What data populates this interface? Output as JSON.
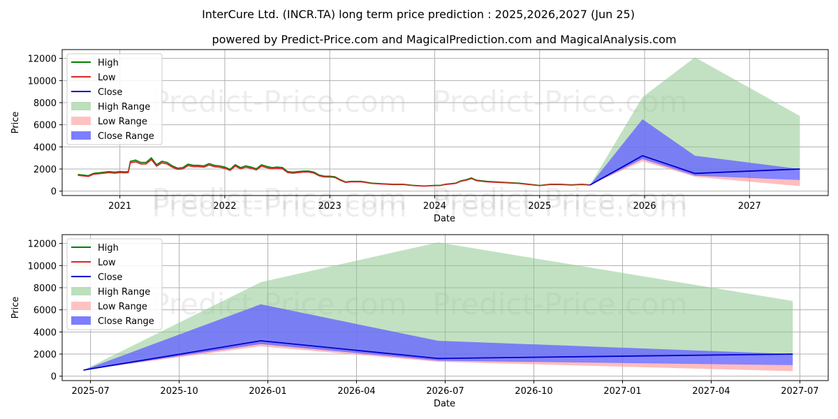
{
  "title": "InterCure Ltd. (INCR.TA) long term price prediction : 2025,2026,2027 (Jun 25)",
  "subtitle": "powered by Predict-Price.com and MagicalPrediction.com and MagicalAnalysis.com",
  "watermark": "Predict-Price.com",
  "colors": {
    "high": "#008000",
    "low": "#d62728",
    "close": "#0000cc",
    "high_range": "#8fc98f",
    "low_range": "#ff9a9a",
    "close_range": "#6666ff",
    "grid": "#b0b0b0"
  },
  "legend_labels": [
    "High",
    "Low",
    "Close",
    "High Range",
    "Low Range",
    "Close Range"
  ],
  "chart_data": [
    {
      "id": "top",
      "type": "line",
      "xlabel": "Date",
      "ylabel": "Price",
      "xlim": [
        2020.45,
        2027.75
      ],
      "ylim": [
        -400,
        12800
      ],
      "x_ticks": [
        2021,
        2022,
        2023,
        2024,
        2025,
        2026,
        2027
      ],
      "x_tick_labels": [
        "2021",
        "2022",
        "2023",
        "2024",
        "2025",
        "2026",
        "2027"
      ],
      "y_ticks": [
        0,
        2000,
        4000,
        6000,
        8000,
        10000,
        12000
      ],
      "y_tick_labels": [
        "0",
        "2000",
        "4000",
        "6000",
        "8000",
        "10000",
        "12000"
      ],
      "legend_position": "upper left",
      "history": {
        "x": [
          2020.6,
          2020.65,
          2020.7,
          2020.75,
          2020.8,
          2020.85,
          2020.9,
          2020.95,
          2021.0,
          2021.05,
          2021.08,
          2021.1,
          2021.15,
          2021.2,
          2021.25,
          2021.3,
          2021.35,
          2021.4,
          2021.45,
          2021.5,
          2021.55,
          2021.6,
          2021.65,
          2021.7,
          2021.75,
          2021.8,
          2021.85,
          2021.9,
          2021.95,
          2022.0,
          2022.05,
          2022.1,
          2022.15,
          2022.2,
          2022.25,
          2022.3,
          2022.35,
          2022.4,
          2022.45,
          2022.5,
          2022.55,
          2022.6,
          2022.65,
          2022.7,
          2022.75,
          2022.8,
          2022.85,
          2022.9,
          2022.95,
          2023.0,
          2023.05,
          2023.1,
          2023.15,
          2023.2,
          2023.3,
          2023.4,
          2023.5,
          2023.6,
          2023.7,
          2023.8,
          2023.9,
          2024.0,
          2024.05,
          2024.1,
          2024.15,
          2024.2,
          2024.25,
          2024.3,
          2024.35,
          2024.4,
          2024.5,
          2024.6,
          2024.7,
          2024.8,
          2024.9,
          2025.0,
          2025.1,
          2025.2,
          2025.3,
          2025.4,
          2025.48
        ],
        "close": [
          1450,
          1400,
          1350,
          1550,
          1600,
          1650,
          1700,
          1650,
          1700,
          1680,
          1700,
          2600,
          2700,
          2500,
          2500,
          2900,
          2300,
          2600,
          2500,
          2200,
          2000,
          2050,
          2350,
          2250,
          2250,
          2200,
          2400,
          2250,
          2200,
          2100,
          1900,
          2300,
          2050,
          2200,
          2100,
          1950,
          2300,
          2150,
          2050,
          2100,
          2050,
          1700,
          1650,
          1700,
          1750,
          1750,
          1650,
          1400,
          1300,
          1300,
          1250,
          1000,
          800,
          850,
          850,
          700,
          650,
          600,
          600,
          500,
          450,
          500,
          500,
          600,
          650,
          700,
          900,
          1000,
          1150,
          950,
          850,
          800,
          750,
          700,
          600,
          500,
          600,
          600,
          550,
          600,
          550
        ]
      },
      "forecast": {
        "x": [
          2025.48,
          2025.98,
          2026.48,
          2027.48
        ],
        "close": [
          550,
          3200,
          1600,
          2000
        ],
        "high_range": [
          550,
          8500,
          12100,
          6800
        ],
        "low_range_upper": [
          550,
          3100,
          1500,
          1000
        ],
        "low_range_lower": [
          550,
          2700,
          1300,
          450
        ],
        "close_range_upper": [
          550,
          6500,
          3200,
          2000
        ],
        "close_range_lower": [
          550,
          2900,
          1400,
          1000
        ]
      }
    },
    {
      "id": "bottom",
      "type": "line",
      "xlabel": "Date",
      "ylabel": "Price",
      "xlim": [
        2025.42,
        2027.58
      ],
      "ylim": [
        -400,
        12800
      ],
      "x_ticks": [
        2025.5,
        2025.75,
        2026.0,
        2026.25,
        2026.5,
        2026.75,
        2027.0,
        2027.25,
        2027.5
      ],
      "x_tick_labels": [
        "2025-07",
        "2025-10",
        "2026-01",
        "2026-04",
        "2026-07",
        "2026-10",
        "2027-01",
        "2027-04",
        "2027-07"
      ],
      "y_ticks": [
        0,
        2000,
        4000,
        6000,
        8000,
        10000,
        12000
      ],
      "y_tick_labels": [
        "0",
        "2000",
        "4000",
        "6000",
        "8000",
        "10000",
        "12000"
      ],
      "legend_position": "upper left",
      "forecast": {
        "x": [
          2025.48,
          2025.98,
          2026.48,
          2027.48
        ],
        "close": [
          550,
          3200,
          1600,
          2000
        ],
        "high_range": [
          550,
          8500,
          12100,
          6800
        ],
        "low_range_upper": [
          550,
          3100,
          1500,
          1000
        ],
        "low_range_lower": [
          550,
          2700,
          1300,
          450
        ],
        "close_range_upper": [
          550,
          6500,
          3200,
          2000
        ],
        "close_range_lower": [
          550,
          2900,
          1400,
          1000
        ]
      }
    }
  ]
}
